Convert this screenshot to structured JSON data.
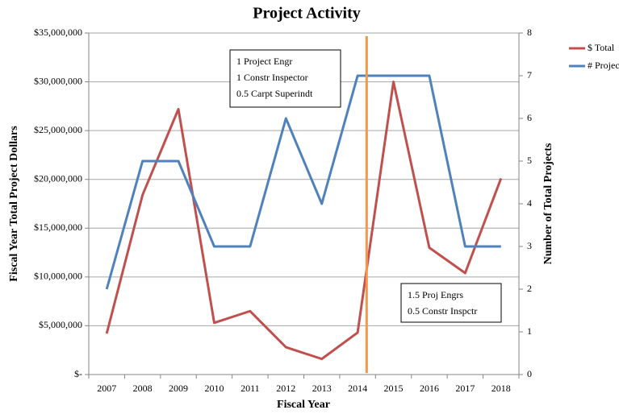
{
  "chart_data": {
    "type": "line",
    "title": "Project Activity",
    "x_label": "Fiscal Year",
    "y_label": "Fiscal Year Total Project Dollars",
    "y2_label": "Number of Total Projects",
    "categories": [
      "2007",
      "2008",
      "2009",
      "2010",
      "2011",
      "2012",
      "2013",
      "2014",
      "2015",
      "2016",
      "2017",
      "2018"
    ],
    "series": [
      {
        "name": "$ Total",
        "color": "#c0504d",
        "values": [
          4200000,
          18400000,
          27200000,
          5300000,
          6500000,
          2800000,
          1600000,
          4300000,
          30000000,
          13000000,
          10400000,
          20100000
        ]
      },
      {
        "name": "# Projects",
        "color": "#4f81bd",
        "axis": "y2",
        "values": [
          2,
          5,
          5,
          3,
          3,
          6,
          4,
          7,
          7,
          7,
          3,
          3
        ]
      }
    ],
    "ylim": [
      0,
      35000000
    ],
    "yticks": [
      {
        "value": 0,
        "label": "$-"
      },
      {
        "value": 5000000,
        "label": "$5,000,000"
      },
      {
        "value": 10000000,
        "label": "$10,000,000"
      },
      {
        "value": 15000000,
        "label": "$15,000,000"
      },
      {
        "value": 20000000,
        "label": "$20,000,000"
      },
      {
        "value": 25000000,
        "label": "$25,000,000"
      },
      {
        "value": 30000000,
        "label": "$30,000,000"
      },
      {
        "value": 35000000,
        "label": "$35,000,000"
      }
    ],
    "y2lim": [
      0,
      8
    ],
    "y2ticks": [
      0,
      1,
      2,
      3,
      4,
      5,
      6,
      7,
      8
    ],
    "grid": true,
    "legend": "right",
    "annotations": [
      [
        "1 Project Engr",
        "1 Constr Inspector",
        "0.5 Carpt Superindt"
      ],
      [
        "1.5 Proj Engrs",
        "0.5 Constr Inspctr"
      ]
    ]
  }
}
